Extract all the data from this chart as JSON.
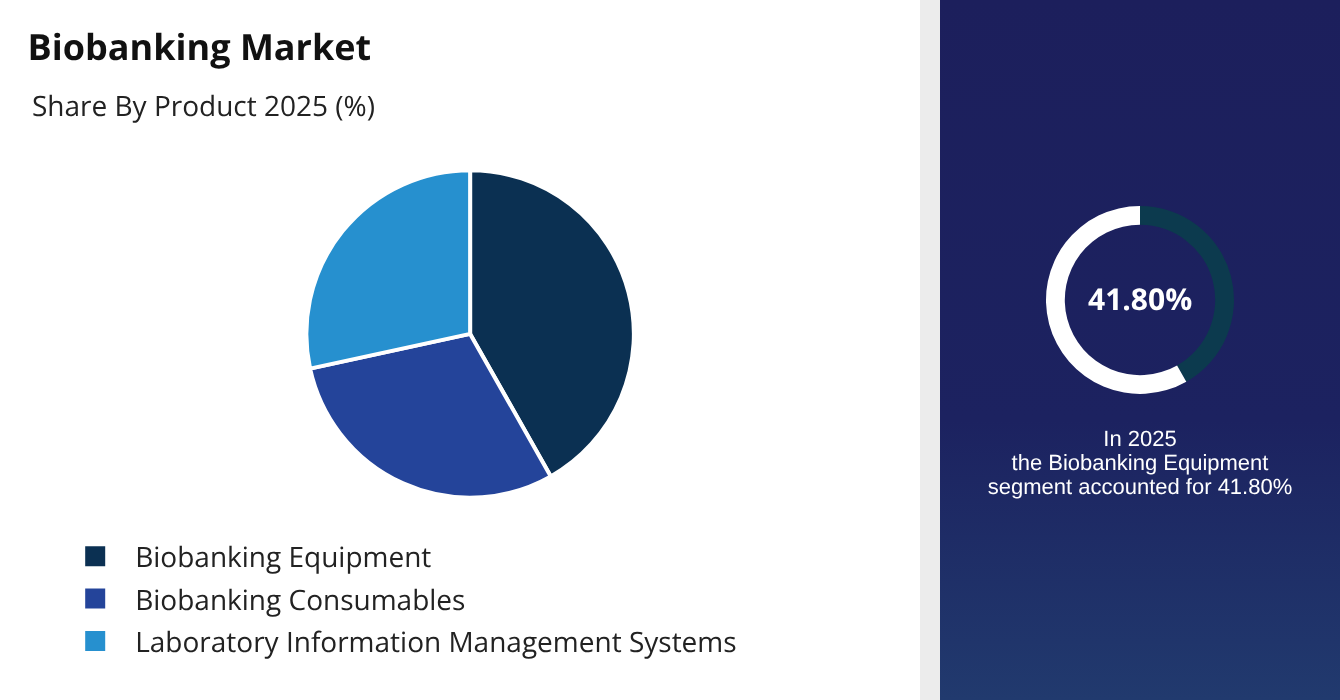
{
  "chart_data": [
    {
      "type": "pie",
      "title": "Biobanking Market",
      "subtitle": "Share By Product 2025 (%)",
      "categories": [
        "Biobanking Equipment",
        "Biobanking Consumables",
        "Laboratory Information Management Systems"
      ],
      "values": [
        41.8,
        29.8,
        28.4
      ],
      "colors": [
        "#0b3052",
        "#24449a",
        "#2690cf"
      ],
      "legend": "bottom left"
    },
    {
      "type": "donut",
      "categories": [
        null,
        null
      ],
      "values": [
        41.8,
        58.2
      ],
      "colors": [
        "#0c3a4e",
        "#ffffff"
      ],
      "annotations": [
        "41.80%",
        "In 2025\nthe Biobanking Equipment\nsegment accounted for 41.80%"
      ]
    }
  ]
}
